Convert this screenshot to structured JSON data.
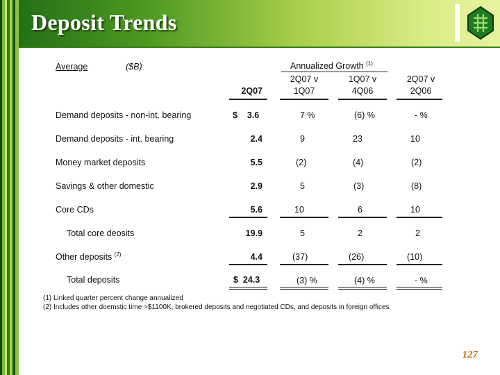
{
  "title": "Deposit Trends",
  "page_number": "127",
  "colors": {
    "brand_green": "#2f7a1c",
    "page_number": "#c96a10"
  },
  "header": {
    "average": "Average",
    "unit": "($B)",
    "group_label": "Annualized Growth",
    "group_note": "(1)",
    "col_2q07": "2Q07",
    "cols": [
      {
        "line1": "2Q07 v",
        "line2": "1Q07"
      },
      {
        "line1": "1Q07 v",
        "line2": "4Q06"
      },
      {
        "line1": "2Q07 v",
        "line2": "2Q06"
      }
    ]
  },
  "rows": [
    {
      "label": "Demand deposits - non-int. bearing",
      "cur": "$    3.6",
      "a": "7  %",
      "b": "(6) %",
      "c": "-  %"
    },
    {
      "label": "Demand deposits - int. bearing",
      "cur": "2.4",
      "a": "9",
      "b": "23",
      "c": "10"
    },
    {
      "label": "Money market deposits",
      "cur": "5.5",
      "a": "(2)",
      "b": "(4)",
      "c": "(2)"
    },
    {
      "label": "Savings & other domestic",
      "cur": "2.9",
      "a": "5",
      "b": "(3)",
      "c": "(8)"
    },
    {
      "label": "Core CDs",
      "cur": "5.6",
      "a": "10",
      "b": "6",
      "c": "10"
    },
    {
      "label": "Total core deosits",
      "cur": "19.9",
      "a": "5",
      "b": "2",
      "c": "2"
    },
    {
      "label": "Other deposits",
      "note": "(2)",
      "cur": "4.4",
      "a": "(37)",
      "b": "(26)",
      "c": "(10)"
    },
    {
      "label": "Total deposits",
      "cur": "$  24.3",
      "a": "(3) %",
      "b": "(4) %",
      "c": "-  %"
    }
  ],
  "footnotes": [
    "(1)  Linked quarter percent change annualized",
    "(2)  Includes other doemstic time >$1100K, brokered deposits and negotiated CDs, and deposits in foreign offices"
  ]
}
